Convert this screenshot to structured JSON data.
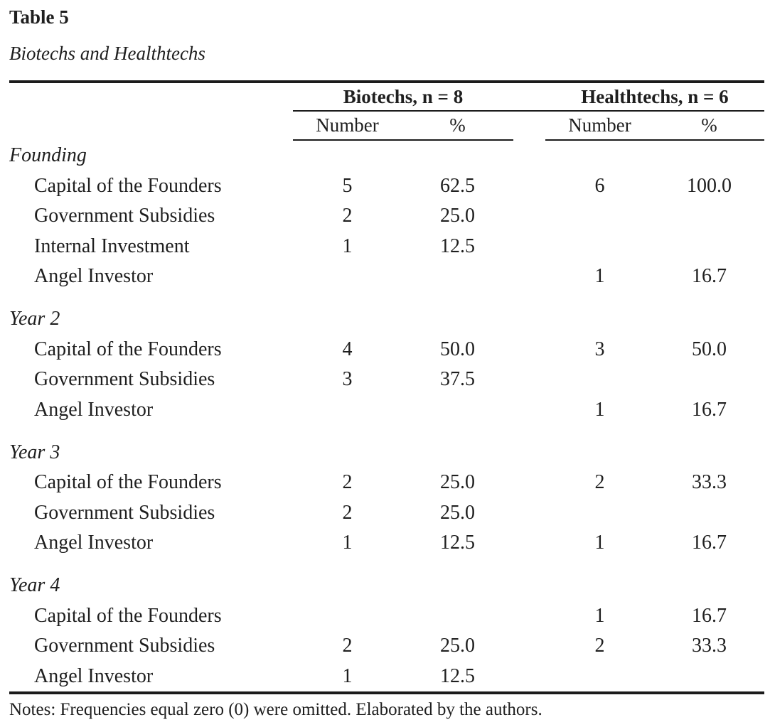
{
  "document": {
    "table_label": "Table 5",
    "table_title": "Biotechs and Healthtechs",
    "notes": "Notes: Frequencies equal zero (0) were omitted. Elaborated by the authors."
  },
  "colors": {
    "text": "#1f1f1f",
    "rule": "#1b1b1b",
    "background": "#ffffff"
  },
  "table": {
    "groups": {
      "biotechs": "Biotechs, n = 8",
      "healthtechs": "Healthtechs, n = 6"
    },
    "subheaders": {
      "number": "Number",
      "percent": "%"
    },
    "rows": [
      {
        "type": "section",
        "label": "Founding"
      },
      {
        "type": "data",
        "label": "Capital of the Founders",
        "b_n": "5",
        "b_pct": "62.5",
        "h_n": "6",
        "h_pct": "100.0"
      },
      {
        "type": "data",
        "label": "Government Subsidies",
        "b_n": "2",
        "b_pct": "25.0",
        "h_n": "",
        "h_pct": ""
      },
      {
        "type": "data",
        "label": "Internal Investment",
        "b_n": "1",
        "b_pct": "12.5",
        "h_n": "",
        "h_pct": ""
      },
      {
        "type": "data",
        "label": "Angel Investor",
        "b_n": "",
        "b_pct": "",
        "h_n": "1",
        "h_pct": "16.7"
      },
      {
        "type": "section",
        "label": "Year 2"
      },
      {
        "type": "data",
        "label": "Capital of the Founders",
        "b_n": "4",
        "b_pct": "50.0",
        "h_n": "3",
        "h_pct": "50.0"
      },
      {
        "type": "data",
        "label": "Government Subsidies",
        "b_n": "3",
        "b_pct": "37.5",
        "h_n": "",
        "h_pct": ""
      },
      {
        "type": "data",
        "label": "Angel Investor",
        "b_n": "",
        "b_pct": "",
        "h_n": "1",
        "h_pct": "16.7"
      },
      {
        "type": "section",
        "label": "Year 3"
      },
      {
        "type": "data",
        "label": "Capital of the Founders",
        "b_n": "2",
        "b_pct": "25.0",
        "h_n": "2",
        "h_pct": "33.3"
      },
      {
        "type": "data",
        "label": "Government Subsidies",
        "b_n": "2",
        "b_pct": "25.0",
        "h_n": "",
        "h_pct": ""
      },
      {
        "type": "data",
        "label": "Angel Investor",
        "b_n": "1",
        "b_pct": "12.5",
        "h_n": "1",
        "h_pct": "16.7"
      },
      {
        "type": "section",
        "label": "Year 4"
      },
      {
        "type": "data",
        "label": "Capital of the Founders",
        "b_n": "",
        "b_pct": "",
        "h_n": "1",
        "h_pct": "16.7"
      },
      {
        "type": "data",
        "label": "Government Subsidies",
        "b_n": "2",
        "b_pct": "25.0",
        "h_n": "2",
        "h_pct": "33.3"
      },
      {
        "type": "data",
        "label": "Angel Investor",
        "b_n": "1",
        "b_pct": "12.5",
        "h_n": "",
        "h_pct": ""
      }
    ]
  }
}
